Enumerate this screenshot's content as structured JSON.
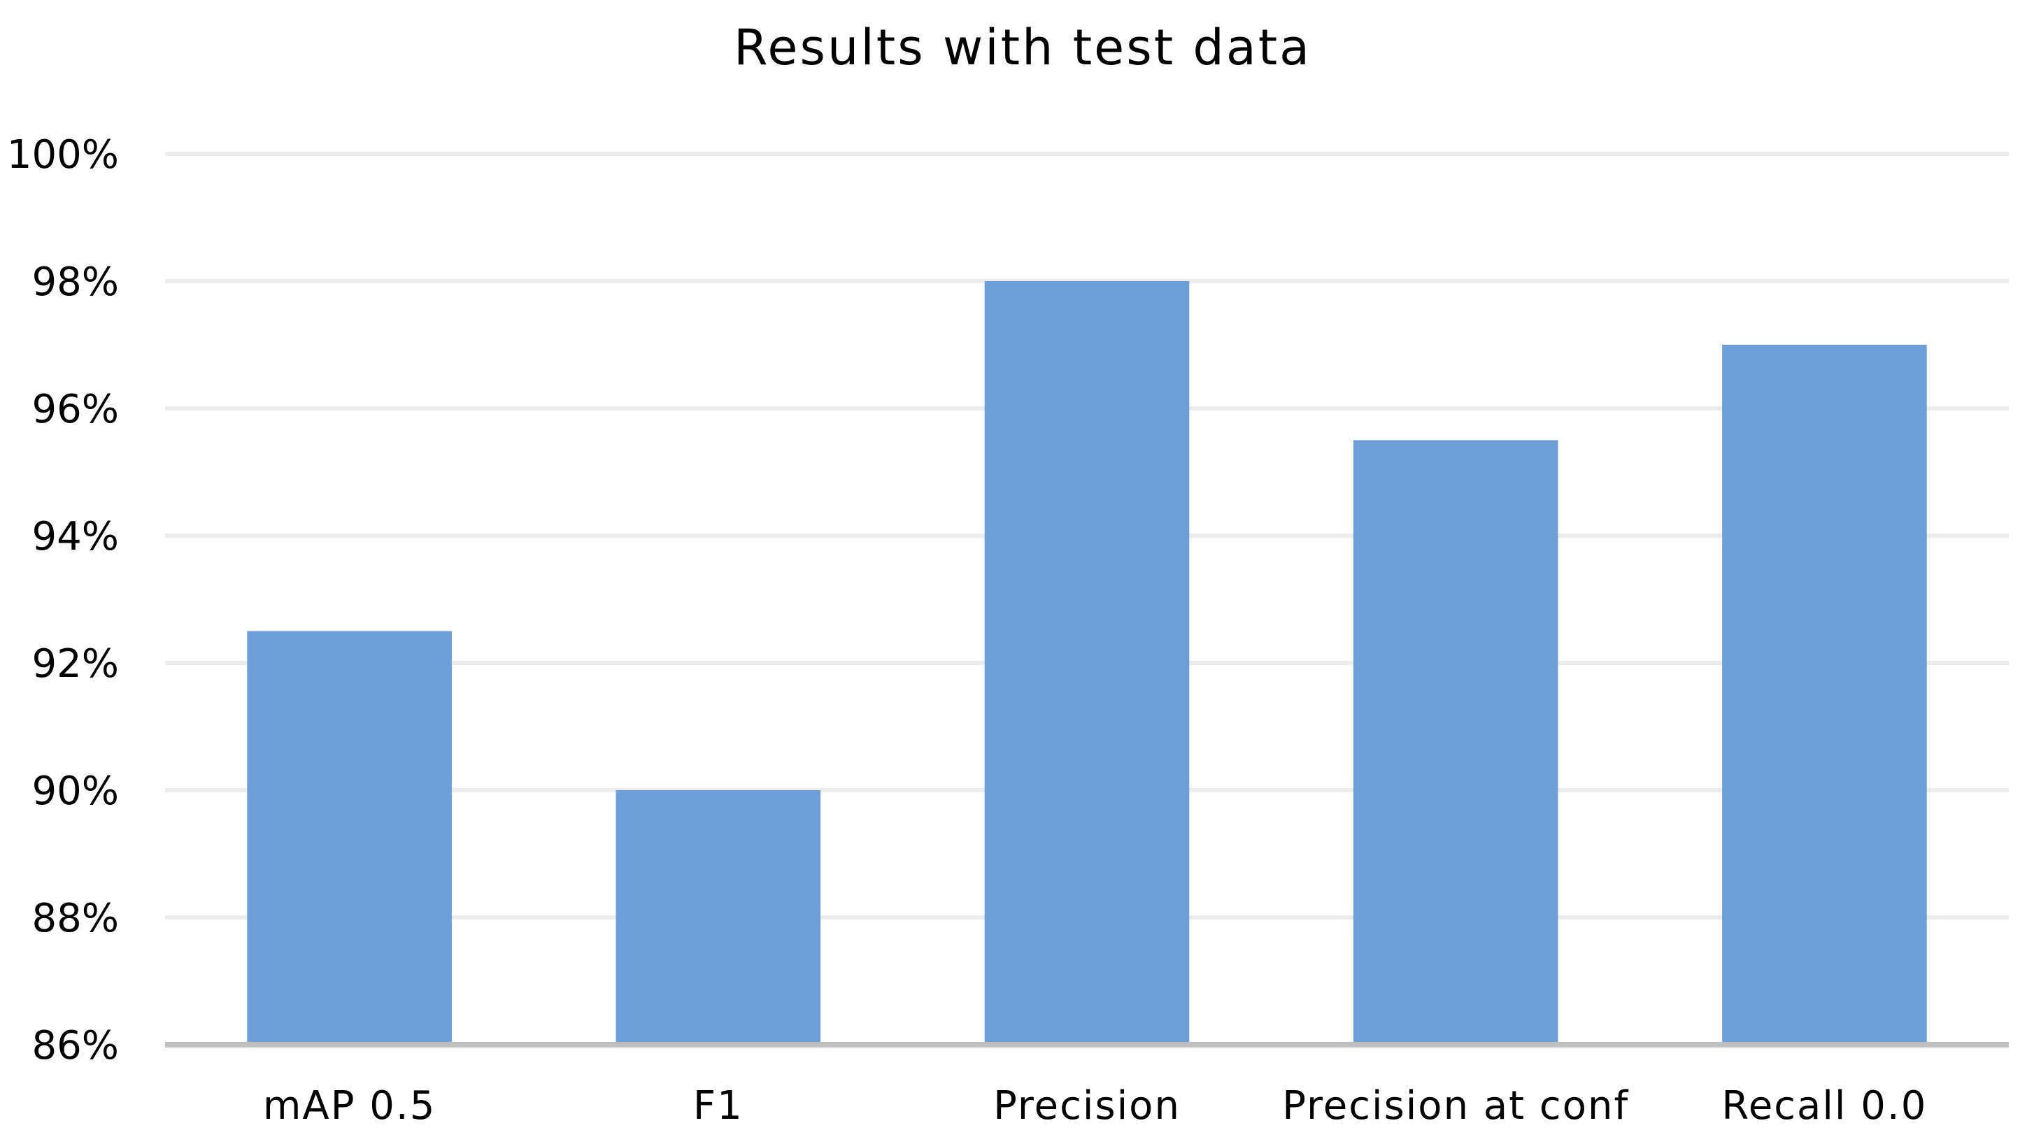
{
  "chart_data": {
    "type": "bar",
    "title": "Results with test data",
    "xlabel": "",
    "ylabel": "",
    "categories": [
      "mAP 0.5",
      "F1",
      "Precision",
      "Precision at conf",
      "Recall 0.0"
    ],
    "values": [
      92.5,
      90.0,
      98.0,
      95.5,
      97.0
    ],
    "value_format": "percent",
    "ylim": [
      86,
      100
    ],
    "yticks": [
      86,
      88,
      90,
      92,
      94,
      96,
      98,
      100
    ],
    "ytick_labels": [
      "86%",
      "88%",
      "90%",
      "92%",
      "94%",
      "96%",
      "98%",
      "100%"
    ],
    "grid": true,
    "legend": "none",
    "bar_color": "#6d9ed7",
    "grid_color": "#ececec",
    "axis_color": "#bfbfbf"
  }
}
